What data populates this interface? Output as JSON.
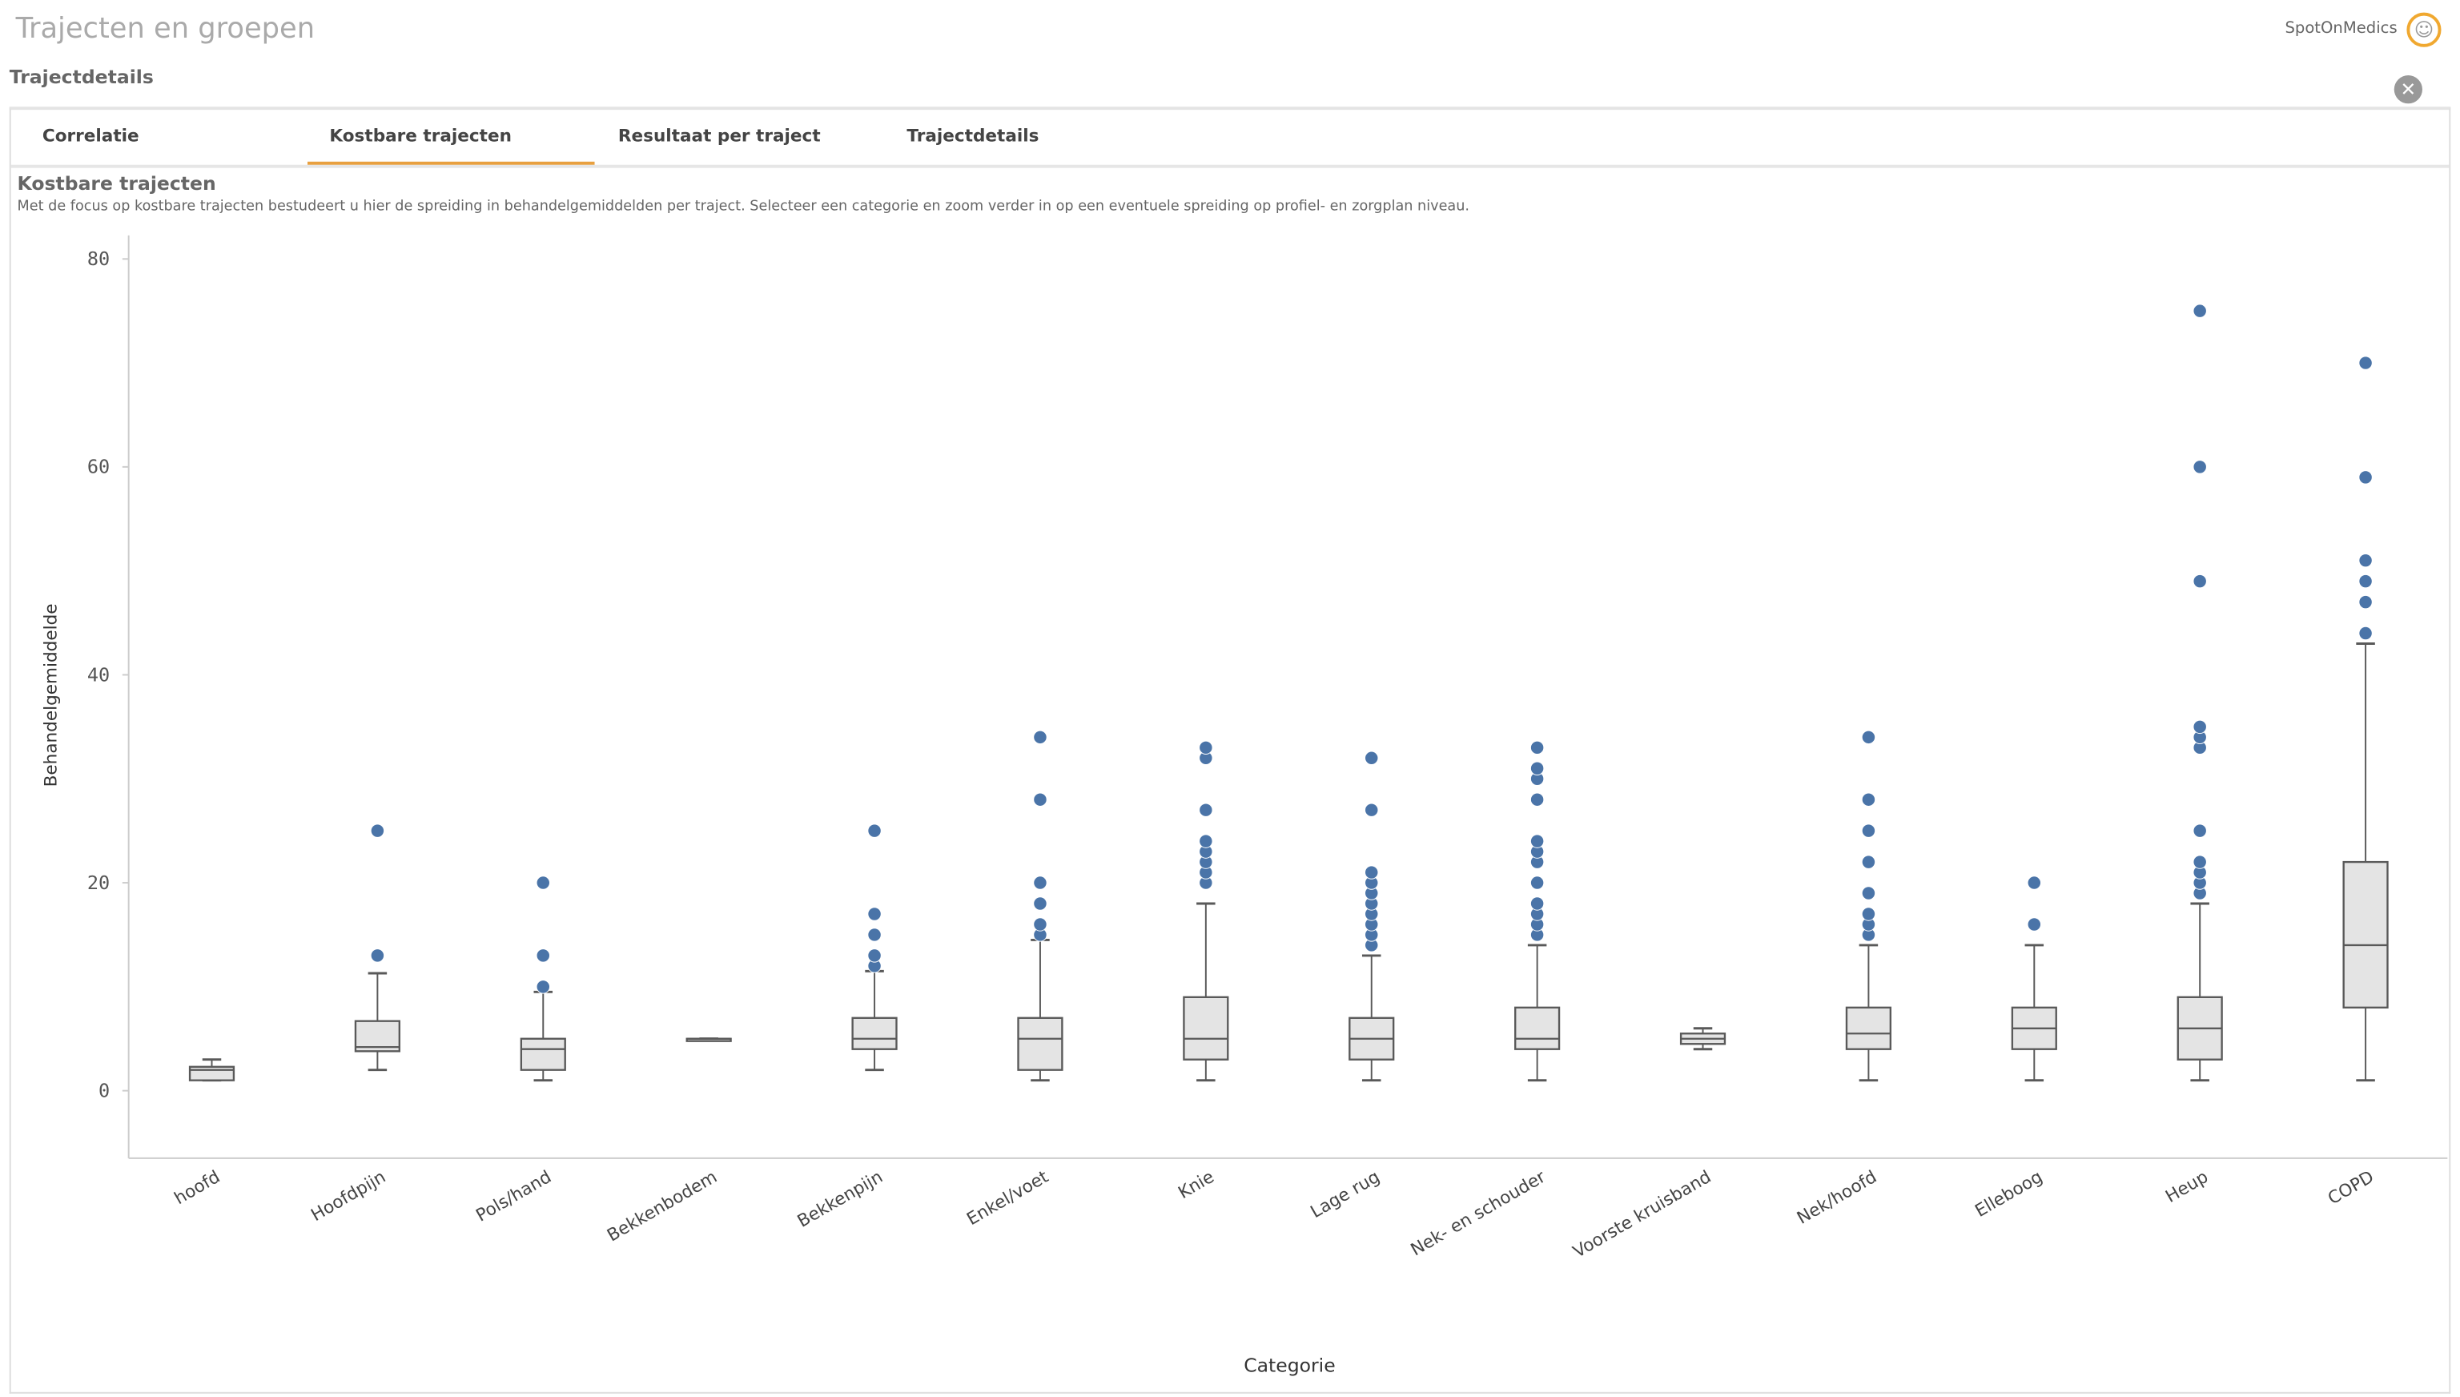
{
  "header": {
    "app_title": "Trajecten en groepen",
    "brand": "SpotOnMedics",
    "sheet_title": "Trajectdetails",
    "close_icon": "close-icon"
  },
  "tabs": [
    {
      "label": "Correlatie"
    },
    {
      "label": "Kostbare trajecten",
      "active": true
    },
    {
      "label": "Resultaat per traject"
    },
    {
      "label": "Trajectdetails"
    }
  ],
  "chart_header": {
    "title": "Kostbare trajecten",
    "subtitle": "Met de focus op kostbare trajecten bestudeert u hier de spreiding in behandelgemiddelden per traject. Selecteer een categorie en zoom verder in op een eventuele spreiding op profiel- en zorgplan niveau."
  },
  "chart_data": {
    "type": "boxplot",
    "xlabel": "Categorie",
    "ylabel": "Behandelgemiddelde",
    "ylim": [
      0,
      80
    ],
    "yticks": [
      0,
      20,
      40,
      60,
      80
    ],
    "grid": false,
    "colors": {
      "box": "#e4e4e4",
      "line": "#595959",
      "outlier": "#4a74a8"
    },
    "categories": [
      "hoofd",
      "Hoofdpijn",
      "Pols/hand",
      "Bekkenbodem",
      "Bekkenpijn",
      "Enkel/voet",
      "Knie",
      "Lage rug",
      "Nek- en schouder",
      "Voorste kruisband",
      "Nek/hoofd",
      "Elleboog",
      "Heup",
      "COPD"
    ],
    "boxes": [
      {
        "min": 1,
        "q1": 1,
        "median": 2,
        "q3": 2.3,
        "max": 3,
        "outliers": []
      },
      {
        "min": 2,
        "q1": 3.8,
        "median": 4.2,
        "q3": 6.7,
        "max": 11.3,
        "outliers": [
          13,
          25
        ]
      },
      {
        "min": 1,
        "q1": 2,
        "median": 4,
        "q3": 5,
        "max": 9.5,
        "outliers": [
          10,
          13,
          20
        ]
      },
      {
        "min": 5,
        "q1": 5,
        "median": 5,
        "q3": 5,
        "max": 5,
        "outliers": []
      },
      {
        "min": 2,
        "q1": 4,
        "median": 5,
        "q3": 7,
        "max": 11.5,
        "outliers": [
          12,
          13,
          15,
          17,
          25
        ]
      },
      {
        "min": 1,
        "q1": 2,
        "median": 5,
        "q3": 7,
        "max": 14.5,
        "outliers": [
          15,
          16,
          18,
          20,
          28,
          34
        ]
      },
      {
        "min": 1,
        "q1": 3,
        "median": 5,
        "q3": 9,
        "max": 18,
        "outliers": [
          20,
          21,
          22,
          23,
          24,
          27,
          32,
          33
        ]
      },
      {
        "min": 1,
        "q1": 3,
        "median": 5,
        "q3": 7,
        "max": 13,
        "outliers": [
          14,
          15,
          16,
          17,
          18,
          19,
          20,
          21,
          27,
          32
        ]
      },
      {
        "min": 1,
        "q1": 4,
        "median": 5,
        "q3": 8,
        "max": 14,
        "outliers": [
          15,
          16,
          17,
          18,
          20,
          22,
          23,
          24,
          28,
          30,
          31,
          33
        ]
      },
      {
        "min": 4,
        "q1": 4.5,
        "median": 5,
        "q3": 5.5,
        "max": 6,
        "outliers": []
      },
      {
        "min": 1,
        "q1": 4,
        "median": 5.5,
        "q3": 8,
        "max": 14,
        "outliers": [
          15,
          16,
          17,
          19,
          22,
          25,
          28,
          34
        ]
      },
      {
        "min": 1,
        "q1": 4,
        "median": 6,
        "q3": 8,
        "max": 14,
        "outliers": [
          16,
          20
        ]
      },
      {
        "min": 1,
        "q1": 3,
        "median": 6,
        "q3": 9,
        "max": 18,
        "outliers": [
          19,
          20,
          21,
          22,
          25,
          33,
          34,
          35,
          49,
          60,
          75
        ]
      },
      {
        "min": 1,
        "q1": 8,
        "median": 14,
        "q3": 22,
        "max": 43,
        "outliers": [
          44,
          47,
          49,
          51,
          59,
          70
        ]
      }
    ]
  }
}
